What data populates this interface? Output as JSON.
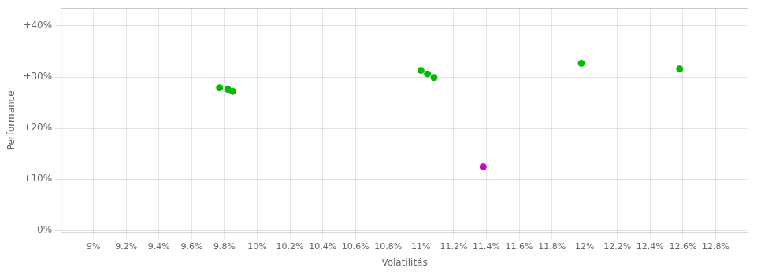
{
  "chart_data": {
    "type": "scatter",
    "xlabel": "Volatilitás",
    "ylabel": "Performance",
    "xlim": [
      0.088,
      0.13
    ],
    "ylim": [
      -0.005,
      0.435
    ],
    "xticks": [
      {
        "value": 0.09,
        "label": "9%"
      },
      {
        "value": 0.092,
        "label": "9.2%"
      },
      {
        "value": 0.094,
        "label": "9.4%"
      },
      {
        "value": 0.096,
        "label": "9.6%"
      },
      {
        "value": 0.098,
        "label": "9.8%"
      },
      {
        "value": 0.1,
        "label": "10%"
      },
      {
        "value": 0.102,
        "label": "10.2%"
      },
      {
        "value": 0.104,
        "label": "10.4%"
      },
      {
        "value": 0.106,
        "label": "10.6%"
      },
      {
        "value": 0.108,
        "label": "10.8%"
      },
      {
        "value": 0.11,
        "label": "11%"
      },
      {
        "value": 0.112,
        "label": "11.2%"
      },
      {
        "value": 0.114,
        "label": "11.4%"
      },
      {
        "value": 0.116,
        "label": "11.6%"
      },
      {
        "value": 0.118,
        "label": "11.8%"
      },
      {
        "value": 0.12,
        "label": "12%"
      },
      {
        "value": 0.122,
        "label": "12.2%"
      },
      {
        "value": 0.124,
        "label": "12.4%"
      },
      {
        "value": 0.126,
        "label": "12.6%"
      },
      {
        "value": 0.128,
        "label": "12.8%"
      }
    ],
    "yticks": [
      {
        "value": 0.0,
        "label": "0%"
      },
      {
        "value": 0.1,
        "label": "+10%"
      },
      {
        "value": 0.2,
        "label": "+20%"
      },
      {
        "value": 0.3,
        "label": "+30%"
      },
      {
        "value": 0.4,
        "label": "+40%"
      }
    ],
    "grid": true,
    "series": [
      {
        "color": "#00bb00",
        "x": [
          0.0977,
          0.0982,
          0.0985,
          0.11,
          0.1104,
          0.1108,
          0.1198,
          0.1258
        ],
        "values": [
          0.279,
          0.276,
          0.272,
          0.313,
          0.306,
          0.299,
          0.327,
          0.316
        ]
      },
      {
        "color": "#cc00cc",
        "x": [
          0.1138
        ],
        "values": [
          0.124
        ]
      }
    ]
  }
}
